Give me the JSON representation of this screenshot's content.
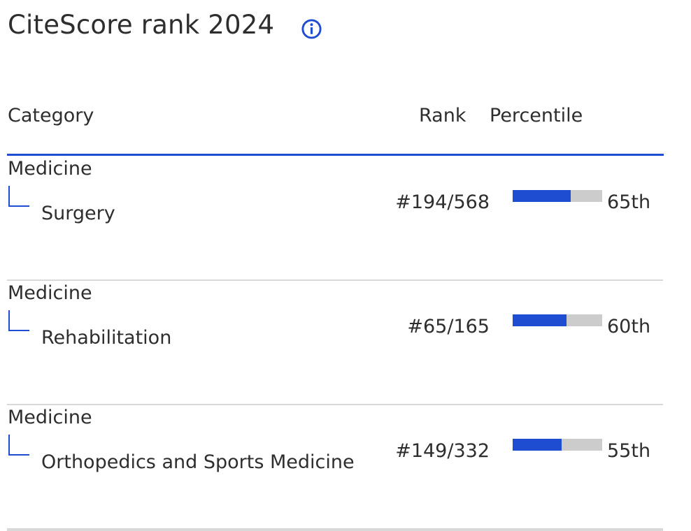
{
  "title": "CiteScore rank 2024",
  "info_icon": "info-circle-icon",
  "colors": {
    "accent": "#1f4dd2",
    "bar_track": "#cccccc",
    "separator": "#d9d9d9",
    "text": "#2e2e2e"
  },
  "table": {
    "headers": {
      "category": "Category",
      "rank": "Rank",
      "percentile": "Percentile"
    },
    "rows": [
      {
        "parent": "Medicine",
        "child": "Surgery",
        "rank": "#194/568",
        "percentile_label": "65th",
        "percentile_value": 65
      },
      {
        "parent": "Medicine",
        "child": "Rehabilitation",
        "rank": "#65/165",
        "percentile_label": "60th",
        "percentile_value": 60
      },
      {
        "parent": "Medicine",
        "child": "Orthopedics and Sports Medicine",
        "rank": "#149/332",
        "percentile_label": "55th",
        "percentile_value": 55
      }
    ]
  }
}
